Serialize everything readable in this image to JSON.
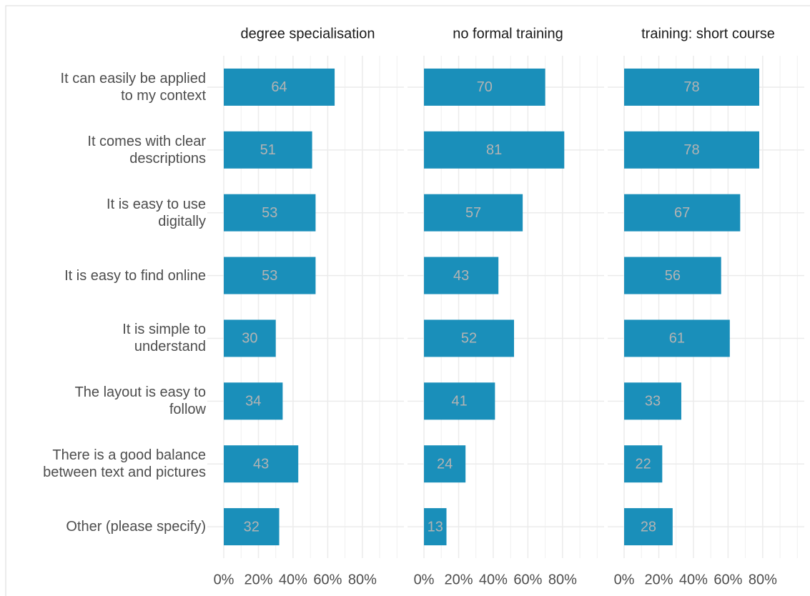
{
  "chart_data": {
    "type": "bar",
    "orientation": "horizontal",
    "categories": [
      "It can easily be applied\nto my context",
      "It comes with clear\ndescriptions",
      "It is easy to use\ndigitally",
      "It is easy to find online",
      "It is simple to\nunderstand",
      "The layout is easy to\nfollow",
      "There is a good balance\nbetween text and pictures",
      "Other (please specify)"
    ],
    "color": "#1a8fba",
    "series": [
      {
        "name": "degree specialisation",
        "values": [
          64,
          51,
          53,
          53,
          30,
          34,
          43,
          32
        ]
      },
      {
        "name": "no formal training",
        "values": [
          70,
          81,
          57,
          43,
          52,
          41,
          24,
          13
        ]
      },
      {
        "name": "training: short course",
        "values": [
          78,
          78,
          67,
          56,
          61,
          33,
          22,
          28
        ]
      }
    ],
    "xlim": [
      -9.5,
      104
    ],
    "xticks": [
      {
        "value": 0,
        "label": "0%"
      },
      {
        "value": 20,
        "label": "20%"
      },
      {
        "value": 40,
        "label": "40%"
      },
      {
        "value": 60,
        "label": "60%"
      },
      {
        "value": 80,
        "label": "80%"
      }
    ],
    "minor_xticks": [
      10,
      30,
      50,
      70,
      90,
      100
    ],
    "grid": true
  }
}
